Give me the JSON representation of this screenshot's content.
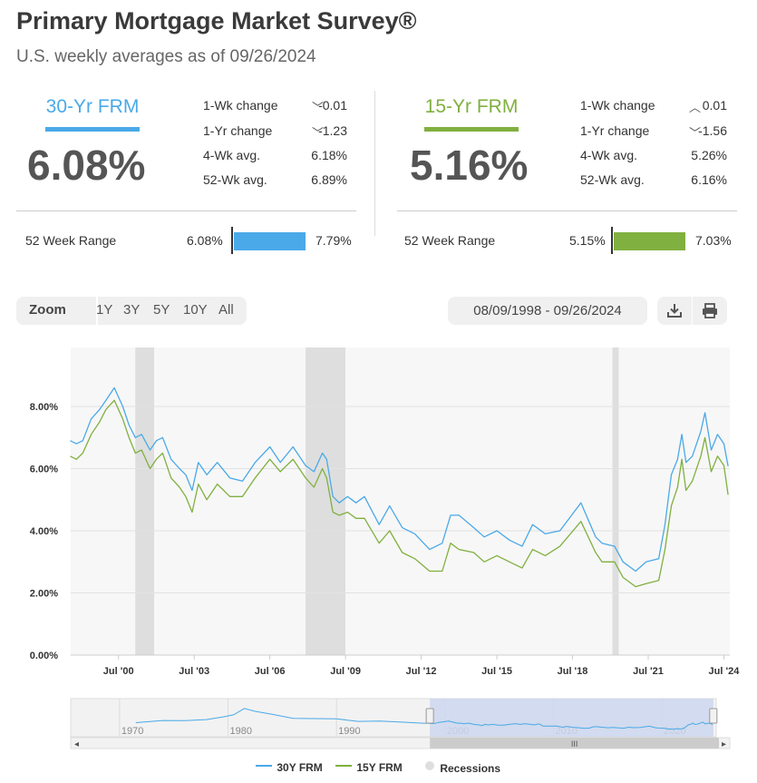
{
  "header": {
    "title": "Primary Mortgage Market Survey®",
    "subtitle": "U.S. weekly averages as of 09/26/2024"
  },
  "colors": {
    "frm30": "#4aa9e8",
    "frm15": "#80b03f",
    "recession": "#dedede",
    "nav_fill": "#cdd7ee"
  },
  "rates": [
    {
      "name": "30-Yr FRM",
      "value": "6.08%",
      "wk_change_label": "1-Wk change",
      "wk_change_dir": "down",
      "wk_change": "-0.01",
      "yr_change_label": "1-Yr change",
      "yr_change_dir": "down",
      "yr_change": "-1.23",
      "avg4_label": "4-Wk avg.",
      "avg4": "6.18%",
      "avg52_label": "52-Wk avg.",
      "avg52": "6.89%",
      "range_label": "52 Week Range",
      "range_low": "6.08%",
      "range_high": "7.79%"
    },
    {
      "name": "15-Yr FRM",
      "value": "5.16%",
      "wk_change_label": "1-Wk change",
      "wk_change_dir": "up",
      "wk_change": "0.01",
      "yr_change_label": "1-Yr change",
      "yr_change_dir": "down",
      "yr_change": "-1.56",
      "avg4_label": "4-Wk avg.",
      "avg4": "5.26%",
      "avg52_label": "52-Wk avg.",
      "avg52": "6.16%",
      "range_label": "52 Week Range",
      "range_low": "5.15%",
      "range_high": "7.03%"
    }
  ],
  "toolbar": {
    "zoom_label": "Zoom",
    "zoom_options": [
      "1Y",
      "3Y",
      "5Y",
      "10Y",
      "All"
    ],
    "date_range": "08/09/1998 - 09/26/2024",
    "download_icon": "download-icon",
    "print_icon": "print-icon"
  },
  "chart_data": {
    "type": "line",
    "x_range": [
      "1998-08-09",
      "2024-09-26"
    ],
    "ylim": [
      0,
      10
    ],
    "y_ticks": [
      "0.00%",
      "2.00%",
      "4.00%",
      "6.00%",
      "8.00%"
    ],
    "x_ticks": [
      "Jul '00",
      "Jul '03",
      "Jul '06",
      "Jul '09",
      "Jul '12",
      "Jul '15",
      "Jul '18",
      "Jul '21",
      "Jul '24"
    ],
    "grid": true,
    "recessions": [
      [
        "2001-03-01",
        "2001-11-30"
      ],
      [
        "2007-12-01",
        "2009-06-30"
      ],
      [
        "2020-02-01",
        "2020-04-30"
      ]
    ],
    "series": [
      {
        "name": "30Y FRM",
        "x": [
          "1998-08",
          "1998-11",
          "1999-02",
          "1999-06",
          "1999-10",
          "2000-01",
          "2000-05",
          "2000-09",
          "2000-12",
          "2001-03",
          "2001-06",
          "2001-10",
          "2002-01",
          "2002-04",
          "2002-08",
          "2002-12",
          "2003-03",
          "2003-06",
          "2003-09",
          "2004-01",
          "2004-06",
          "2004-12",
          "2005-06",
          "2005-12",
          "2006-07",
          "2006-12",
          "2007-06",
          "2007-12",
          "2008-04",
          "2008-08",
          "2008-10",
          "2009-01",
          "2009-04",
          "2009-08",
          "2009-12",
          "2010-04",
          "2010-11",
          "2011-04",
          "2011-10",
          "2012-04",
          "2012-11",
          "2013-05",
          "2013-09",
          "2014-01",
          "2014-08",
          "2015-01",
          "2015-07",
          "2016-01",
          "2016-07",
          "2016-12",
          "2017-06",
          "2018-01",
          "2018-11",
          "2019-06",
          "2019-09",
          "2020-03",
          "2020-07",
          "2021-01",
          "2021-06",
          "2021-12",
          "2022-03",
          "2022-06",
          "2022-09",
          "2022-11",
          "2023-01",
          "2023-04",
          "2023-08",
          "2023-10",
          "2024-01",
          "2024-04",
          "2024-07",
          "2024-09"
        ],
        "y": [
          6.9,
          6.8,
          6.9,
          7.6,
          7.9,
          8.2,
          8.6,
          8.0,
          7.4,
          7.0,
          7.1,
          6.6,
          6.9,
          7.0,
          6.3,
          6.0,
          5.8,
          5.3,
          6.2,
          5.8,
          6.2,
          5.7,
          5.6,
          6.2,
          6.7,
          6.2,
          6.7,
          6.1,
          5.9,
          6.5,
          6.3,
          5.1,
          4.9,
          5.1,
          4.9,
          5.1,
          4.2,
          4.8,
          4.1,
          3.9,
          3.4,
          3.6,
          4.5,
          4.5,
          4.1,
          3.8,
          4.0,
          3.7,
          3.5,
          4.2,
          3.9,
          4.0,
          4.9,
          3.8,
          3.6,
          3.5,
          3.0,
          2.7,
          3.0,
          3.1,
          4.2,
          5.8,
          6.3,
          7.1,
          6.2,
          6.4,
          7.2,
          7.8,
          6.6,
          7.1,
          6.8,
          6.08
        ]
      },
      {
        "name": "15Y FRM",
        "x": [
          "1998-08",
          "1998-11",
          "1999-02",
          "1999-06",
          "1999-10",
          "2000-01",
          "2000-05",
          "2000-09",
          "2000-12",
          "2001-03",
          "2001-06",
          "2001-10",
          "2002-01",
          "2002-04",
          "2002-08",
          "2002-12",
          "2003-03",
          "2003-06",
          "2003-09",
          "2004-01",
          "2004-06",
          "2004-12",
          "2005-06",
          "2005-12",
          "2006-07",
          "2006-12",
          "2007-06",
          "2007-12",
          "2008-04",
          "2008-08",
          "2008-10",
          "2009-01",
          "2009-04",
          "2009-08",
          "2009-12",
          "2010-04",
          "2010-11",
          "2011-04",
          "2011-10",
          "2012-04",
          "2012-11",
          "2013-05",
          "2013-09",
          "2014-01",
          "2014-08",
          "2015-01",
          "2015-07",
          "2016-01",
          "2016-07",
          "2016-12",
          "2017-06",
          "2018-01",
          "2018-11",
          "2019-06",
          "2019-09",
          "2020-03",
          "2020-07",
          "2021-01",
          "2021-06",
          "2021-12",
          "2022-03",
          "2022-06",
          "2022-09",
          "2022-11",
          "2023-01",
          "2023-04",
          "2023-08",
          "2023-10",
          "2024-01",
          "2024-04",
          "2024-07",
          "2024-09"
        ],
        "y": [
          6.4,
          6.3,
          6.5,
          7.1,
          7.5,
          7.9,
          8.2,
          7.6,
          7.0,
          6.5,
          6.6,
          6.0,
          6.3,
          6.5,
          5.7,
          5.4,
          5.1,
          4.6,
          5.5,
          5.0,
          5.5,
          5.1,
          5.1,
          5.7,
          6.3,
          5.9,
          6.3,
          5.7,
          5.4,
          6.0,
          5.7,
          4.6,
          4.5,
          4.6,
          4.4,
          4.4,
          3.6,
          4.0,
          3.3,
          3.1,
          2.7,
          2.7,
          3.6,
          3.4,
          3.3,
          3.0,
          3.2,
          3.0,
          2.8,
          3.4,
          3.2,
          3.5,
          4.3,
          3.3,
          3.0,
          3.0,
          2.5,
          2.2,
          2.3,
          2.4,
          3.4,
          4.8,
          5.4,
          6.3,
          5.3,
          5.6,
          6.4,
          7.0,
          5.9,
          6.4,
          6.1,
          5.16
        ]
      }
    ],
    "navigator": {
      "x_ticks": [
        "1970",
        "1980",
        "1990",
        "2000",
        "2010",
        "2020"
      ],
      "selection": [
        "1998-08-09",
        "2024-09-26"
      ],
      "handle_label": "III",
      "scroll_left": "◂",
      "scroll_right": "▸"
    },
    "legend": {
      "position": "bottom-center",
      "items": [
        {
          "label": "30Y FRM",
          "color": "#4aa9e8"
        },
        {
          "label": "15Y FRM",
          "color": "#80b03f"
        },
        {
          "label": "Recessions",
          "color": "#dedede"
        }
      ]
    }
  }
}
